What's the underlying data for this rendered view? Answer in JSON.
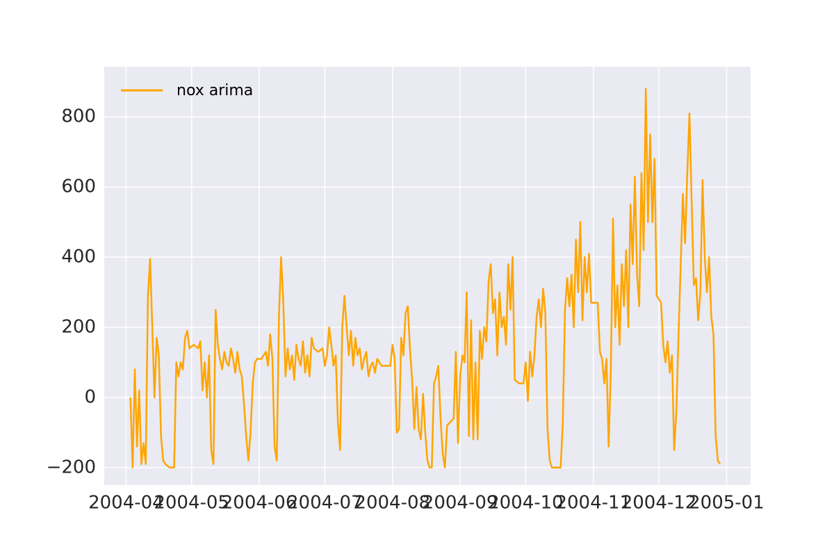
{
  "chart_data": {
    "type": "line",
    "x": [
      "2004-04-03",
      "2004-04-04",
      "2004-04-05",
      "2004-04-06",
      "2004-04-07",
      "2004-04-08",
      "2004-04-09",
      "2004-04-10",
      "2004-04-11",
      "2004-04-12",
      "2004-04-13",
      "2004-04-14",
      "2004-04-15",
      "2004-04-16",
      "2004-04-17",
      "2004-04-18",
      "2004-04-19",
      "2004-04-21",
      "2004-04-23",
      "2004-04-24",
      "2004-04-25",
      "2004-04-26",
      "2004-04-27",
      "2004-04-28",
      "2004-04-29",
      "2004-04-30",
      "2004-05-02",
      "2004-05-04",
      "2004-05-05",
      "2004-05-06",
      "2004-05-07",
      "2004-05-08",
      "2004-05-09",
      "2004-05-10",
      "2004-05-11",
      "2004-05-12",
      "2004-05-13",
      "2004-05-14",
      "2004-05-15",
      "2004-05-16",
      "2004-05-17",
      "2004-05-18",
      "2004-05-19",
      "2004-05-20",
      "2004-05-21",
      "2004-05-22",
      "2004-05-23",
      "2004-05-24",
      "2004-05-25",
      "2004-05-26",
      "2004-05-27",
      "2004-05-28",
      "2004-05-29",
      "2004-05-30",
      "2004-05-31",
      "2004-06-02",
      "2004-06-04",
      "2004-06-05",
      "2004-06-06",
      "2004-06-07",
      "2004-06-08",
      "2004-06-09",
      "2004-06-10",
      "2004-06-11",
      "2004-06-12",
      "2004-06-13",
      "2004-06-14",
      "2004-06-15",
      "2004-06-16",
      "2004-06-17",
      "2004-06-18",
      "2004-06-19",
      "2004-06-20",
      "2004-06-21",
      "2004-06-22",
      "2004-06-23",
      "2004-06-24",
      "2004-06-25",
      "2004-06-26",
      "2004-06-28",
      "2004-06-30",
      "2004-07-01",
      "2004-07-02",
      "2004-07-03",
      "2004-07-04",
      "2004-07-05",
      "2004-07-06",
      "2004-07-07",
      "2004-07-08",
      "2004-07-09",
      "2004-07-10",
      "2004-07-11",
      "2004-07-12",
      "2004-07-13",
      "2004-07-14",
      "2004-07-15",
      "2004-07-16",
      "2004-07-17",
      "2004-07-18",
      "2004-07-19",
      "2004-07-20",
      "2004-07-21",
      "2004-07-22",
      "2004-07-23",
      "2004-07-24",
      "2004-07-25",
      "2004-07-27",
      "2004-07-29",
      "2004-07-31",
      "2004-08-01",
      "2004-08-02",
      "2004-08-03",
      "2004-08-04",
      "2004-08-05",
      "2004-08-06",
      "2004-08-07",
      "2004-08-08",
      "2004-08-09",
      "2004-08-10",
      "2004-08-11",
      "2004-08-12",
      "2004-08-13",
      "2004-08-14",
      "2004-08-15",
      "2004-08-16",
      "2004-08-17",
      "2004-08-18",
      "2004-08-19",
      "2004-08-20",
      "2004-08-21",
      "2004-08-22",
      "2004-08-23",
      "2004-08-24",
      "2004-08-25",
      "2004-08-26",
      "2004-08-29",
      "2004-08-30",
      "2004-08-31",
      "2004-09-01",
      "2004-09-02",
      "2004-09-03",
      "2004-09-04",
      "2004-09-05",
      "2004-09-06",
      "2004-09-07",
      "2004-09-08",
      "2004-09-09",
      "2004-09-10",
      "2004-09-11",
      "2004-09-12",
      "2004-09-13",
      "2004-09-14",
      "2004-09-15",
      "2004-09-16",
      "2004-09-17",
      "2004-09-18",
      "2004-09-19",
      "2004-09-20",
      "2004-09-21",
      "2004-09-22",
      "2004-09-23",
      "2004-09-24",
      "2004-09-25",
      "2004-09-26",
      "2004-09-28",
      "2004-09-30",
      "2004-10-01",
      "2004-10-02",
      "2004-10-03",
      "2004-10-04",
      "2004-10-05",
      "2004-10-06",
      "2004-10-07",
      "2004-10-08",
      "2004-10-09",
      "2004-10-10",
      "2004-10-11",
      "2004-10-12",
      "2004-10-13",
      "2004-10-15",
      "2004-10-17",
      "2004-10-18",
      "2004-10-19",
      "2004-10-20",
      "2004-10-21",
      "2004-10-22",
      "2004-10-23",
      "2004-10-24",
      "2004-10-25",
      "2004-10-26",
      "2004-10-27",
      "2004-10-28",
      "2004-10-29",
      "2004-10-30",
      "2004-10-31",
      "2004-11-01",
      "2004-11-03",
      "2004-11-04",
      "2004-11-05",
      "2004-11-06",
      "2004-11-07",
      "2004-11-08",
      "2004-11-09",
      "2004-11-10",
      "2004-11-11",
      "2004-11-12",
      "2004-11-13",
      "2004-11-14",
      "2004-11-15",
      "2004-11-16",
      "2004-11-17",
      "2004-11-18",
      "2004-11-19",
      "2004-11-20",
      "2004-11-21",
      "2004-11-22",
      "2004-11-23",
      "2004-11-24",
      "2004-11-25",
      "2004-11-26",
      "2004-11-27",
      "2004-11-28",
      "2004-11-29",
      "2004-11-30",
      "2004-12-01",
      "2004-12-02",
      "2004-12-03",
      "2004-12-04",
      "2004-12-05",
      "2004-12-06",
      "2004-12-07",
      "2004-12-08",
      "2004-12-09",
      "2004-12-10",
      "2004-12-11",
      "2004-12-12",
      "2004-12-13",
      "2004-12-14",
      "2004-12-15",
      "2004-12-16",
      "2004-12-17",
      "2004-12-18",
      "2004-12-19",
      "2004-12-20",
      "2004-12-21",
      "2004-12-22",
      "2004-12-23",
      "2004-12-24",
      "2004-12-25",
      "2004-12-26",
      "2004-12-27",
      "2004-12-28",
      "2004-12-29"
    ],
    "series": [
      {
        "name": "nox arima",
        "color": "#ffa500",
        "values": [
          0,
          -200,
          80,
          -140,
          20,
          -190,
          -130,
          -190,
          290,
          395,
          200,
          0,
          170,
          120,
          -110,
          -180,
          -190,
          -200,
          -200,
          100,
          60,
          100,
          80,
          170,
          190,
          140,
          150,
          140,
          160,
          20,
          100,
          0,
          120,
          -150,
          -190,
          250,
          150,
          110,
          80,
          130,
          100,
          90,
          140,
          110,
          70,
          130,
          80,
          60,
          -20,
          -110,
          -180,
          -100,
          40,
          100,
          110,
          110,
          130,
          90,
          180,
          110,
          -140,
          -180,
          230,
          400,
          270,
          60,
          140,
          80,
          120,
          50,
          150,
          110,
          90,
          160,
          70,
          120,
          60,
          170,
          140,
          130,
          140,
          90,
          120,
          200,
          150,
          90,
          120,
          -70,
          -150,
          200,
          290,
          200,
          120,
          190,
          90,
          170,
          120,
          140,
          80,
          110,
          130,
          60,
          90,
          100,
          70,
          110,
          90,
          90,
          90,
          150,
          110,
          -100,
          -90,
          170,
          120,
          240,
          260,
          140,
          50,
          -90,
          30,
          -90,
          -120,
          10,
          -100,
          -180,
          -200,
          -200,
          40,
          60,
          90,
          -60,
          -160,
          -200,
          -80,
          -60,
          130,
          -130,
          60,
          120,
          100,
          300,
          -110,
          220,
          -120,
          100,
          -120,
          190,
          110,
          200,
          160,
          330,
          380,
          240,
          280,
          120,
          300,
          200,
          230,
          150,
          380,
          250,
          400,
          50,
          40,
          40,
          100,
          -10,
          130,
          60,
          120,
          230,
          280,
          200,
          310,
          240,
          -90,
          -180,
          -200,
          -200,
          -200,
          -70,
          250,
          340,
          260,
          350,
          200,
          450,
          300,
          500,
          220,
          400,
          300,
          410,
          270,
          270,
          270,
          130,
          110,
          40,
          110,
          -140,
          80,
          510,
          200,
          320,
          150,
          380,
          260,
          420,
          200,
          550,
          380,
          630,
          350,
          260,
          640,
          420,
          880,
          500,
          750,
          500,
          680,
          290,
          280,
          270,
          150,
          100,
          160,
          70,
          120,
          -150,
          -40,
          180,
          380,
          580,
          440,
          640,
          810,
          560,
          320,
          340,
          220,
          300,
          620,
          400,
          300,
          400,
          230,
          180,
          -110,
          -180,
          -190
        ]
      }
    ],
    "xlim": [
      "2004-03-22",
      "2005-01-12"
    ],
    "xticks": [
      {
        "value": "2004-04-01",
        "label": "2004-04"
      },
      {
        "value": "2004-05-01",
        "label": "2004-05"
      },
      {
        "value": "2004-06-01",
        "label": "2004-06"
      },
      {
        "value": "2004-07-01",
        "label": "2004-07"
      },
      {
        "value": "2004-08-01",
        "label": "2004-08"
      },
      {
        "value": "2004-09-01",
        "label": "2004-09"
      },
      {
        "value": "2004-10-01",
        "label": "2004-10"
      },
      {
        "value": "2004-11-01",
        "label": "2004-11"
      },
      {
        "value": "2004-12-01",
        "label": "2004-12"
      },
      {
        "value": "2005-01-01",
        "label": "2005-01"
      }
    ],
    "ylim": [
      -250,
      943
    ],
    "yticks": [
      {
        "value": -200,
        "label": "−200"
      },
      0,
      200,
      400,
      600,
      800
    ],
    "grid": true,
    "legend": "upper left"
  }
}
